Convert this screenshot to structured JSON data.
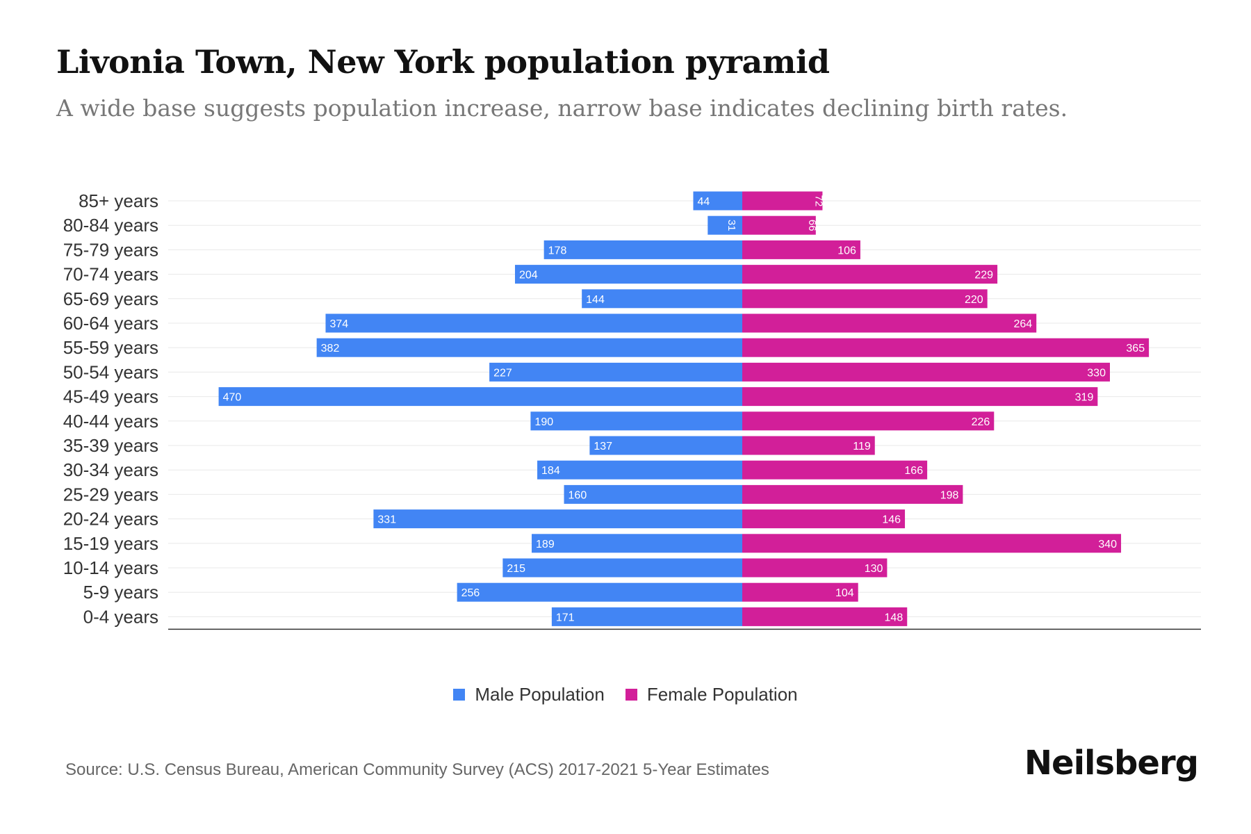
{
  "header": {
    "title": "Livonia Town, New York population pyramid",
    "subtitle": "A wide base suggests population increase, narrow base indicates declining birth rates."
  },
  "footer": {
    "source": "Source: U.S. Census Bureau, American Community Survey (ACS) 2017-2021 5-Year Estimates",
    "brand": "Neilsberg"
  },
  "legend": {
    "male_label": "Male Population",
    "female_label": "Female Population"
  },
  "colors": {
    "male": "#4285F4",
    "female": "#D21F99",
    "grid": "#e8e8e8",
    "axis": "#333333"
  },
  "chart_data": {
    "type": "bar",
    "orientation": "horizontal-pyramid",
    "title": "Livonia Town, New York population pyramid",
    "categories": [
      "85+ years",
      "80-84 years",
      "75-79 years",
      "70-74 years",
      "65-69 years",
      "60-64 years",
      "55-59 years",
      "50-54 years",
      "45-49 years",
      "40-44 years",
      "35-39 years",
      "30-34 years",
      "25-29 years",
      "20-24 years",
      "15-19 years",
      "10-14 years",
      "5-9 years",
      "0-4 years"
    ],
    "series": [
      {
        "name": "Male Population",
        "values": [
          44,
          31,
          178,
          204,
          144,
          374,
          382,
          227,
          470,
          190,
          137,
          184,
          160,
          331,
          189,
          215,
          256,
          171
        ]
      },
      {
        "name": "Female Population",
        "values": [
          72,
          66,
          106,
          229,
          220,
          264,
          365,
          330,
          319,
          226,
          119,
          166,
          198,
          146,
          340,
          130,
          104,
          148
        ]
      }
    ],
    "xlim": [
      -515,
      412
    ],
    "legend_position": "bottom-center",
    "grid": true
  }
}
